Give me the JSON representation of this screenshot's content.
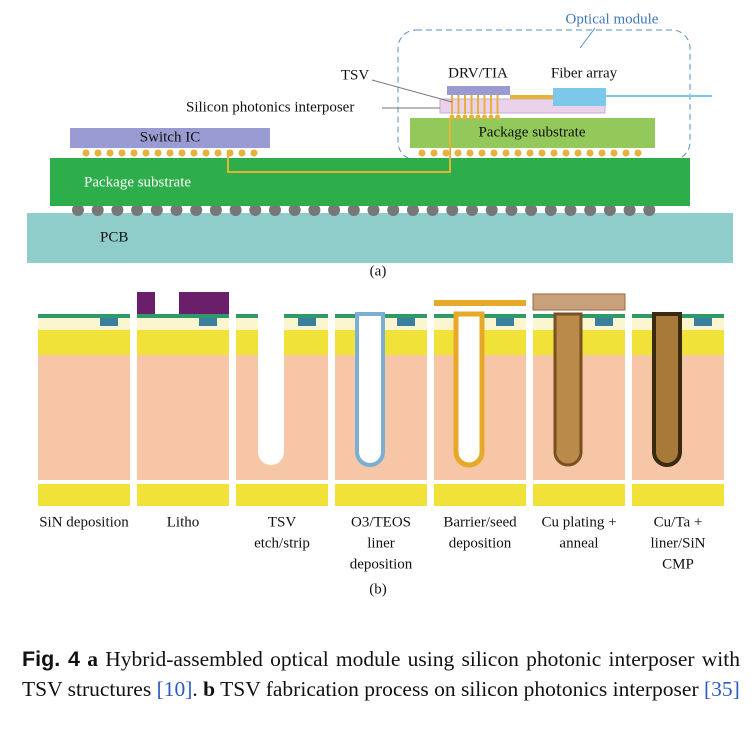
{
  "figure_a": {
    "optical_module": "Optical module",
    "tsv": "TSV",
    "drv_tia": "DRV/TIA",
    "fiber_array": "Fiber array",
    "interposer": "Silicon photonics interposer",
    "package_substrate_right": "Package substrate",
    "switch_ic": "Switch IC",
    "package_substrate_main": "Package substrate",
    "pcb": "PCB",
    "panel_label": "(a)"
  },
  "figure_b": {
    "steps": [
      [
        "SiN deposition"
      ],
      [
        "Litho"
      ],
      [
        "TSV",
        "etch/strip"
      ],
      [
        "O3/TEOS",
        "liner",
        "deposition"
      ],
      [
        "Barrier/seed",
        "deposition"
      ],
      [
        "Cu plating +",
        "anneal"
      ],
      [
        "Cu/Ta +",
        "liner/SiN",
        "CMP"
      ]
    ],
    "panel_label": "(b)"
  },
  "caption": {
    "label": "Fig. 4",
    "a": "a",
    "a_text": "Hybrid-assembled optical module using silicon photonic interposer with TSV structures",
    "ref_a": "[10]",
    "separator": ".",
    "b": "b",
    "b_text": "TSV fabrication process on silicon photonics interposer",
    "ref_b": "[35]"
  }
}
